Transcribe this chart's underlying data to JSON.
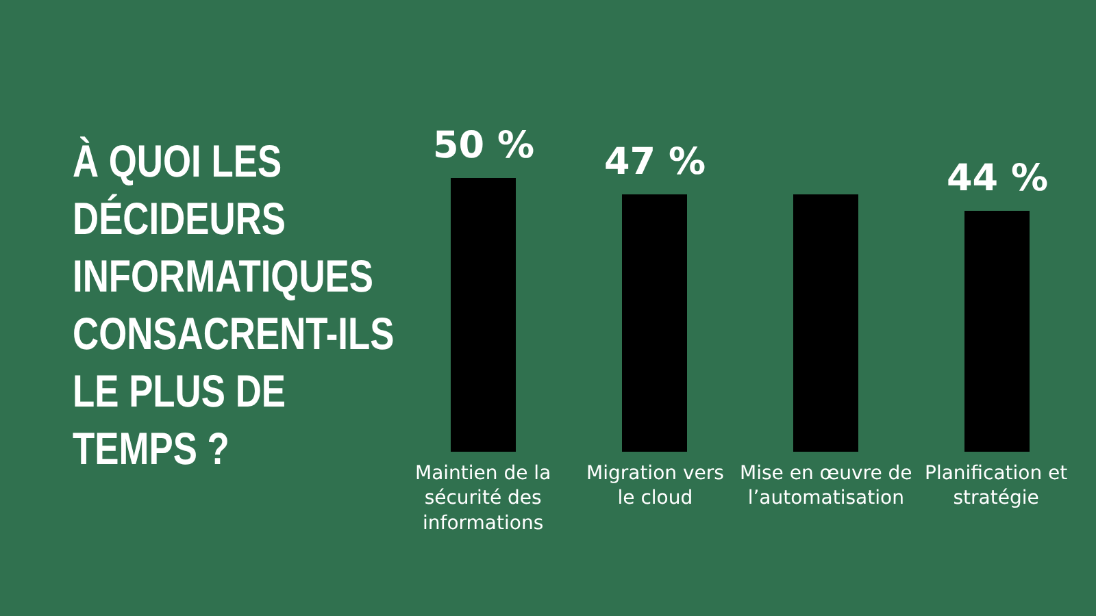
{
  "chart_data": {
    "type": "bar",
    "title": "À QUOI LES DÉCIDEURS INFORMATIQUES CONSACRENT-ILS LE PLUS DE TEMPS ?",
    "categories": [
      "Maintien de la sécurité des informations",
      "Migration vers le cloud",
      "Mise en œuvre de l’automatisation",
      "Planification et stratégie"
    ],
    "values": [
      50,
      47,
      47,
      44
    ],
    "color": "#000000",
    "value_labels": [
      "50 %",
      "47 %",
      null,
      "44 %"
    ]
  }
}
